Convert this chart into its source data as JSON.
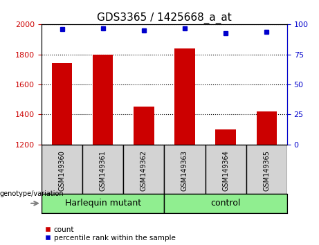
{
  "title": "GDS3365 / 1425668_a_at",
  "samples": [
    "GSM149360",
    "GSM149361",
    "GSM149362",
    "GSM149363",
    "GSM149364",
    "GSM149365"
  ],
  "counts": [
    1745,
    1800,
    1455,
    1840,
    1300,
    1420
  ],
  "percentile_ranks": [
    96,
    97,
    95,
    97,
    93,
    94
  ],
  "groups": [
    {
      "label": "Harlequin mutant",
      "indices": [
        0,
        1,
        2
      ],
      "color": "#90EE90"
    },
    {
      "label": "control",
      "indices": [
        3,
        4,
        5
      ],
      "color": "#90EE90"
    }
  ],
  "ylim_left": [
    1200,
    2000
  ],
  "ylim_right": [
    0,
    100
  ],
  "yticks_left": [
    1200,
    1400,
    1600,
    1800,
    2000
  ],
  "yticks_right": [
    0,
    25,
    50,
    75,
    100
  ],
  "bar_color": "#CC0000",
  "dot_color": "#0000CC",
  "bar_width": 0.5,
  "tick_label_color_left": "#CC0000",
  "tick_label_color_right": "#0000CC",
  "xlabel": "genotype/variation",
  "legend_count_label": "count",
  "legend_pct_label": "percentile rank within the sample",
  "sample_box_color": "#D3D3D3",
  "group_label_fontsize": 9,
  "title_fontsize": 11
}
